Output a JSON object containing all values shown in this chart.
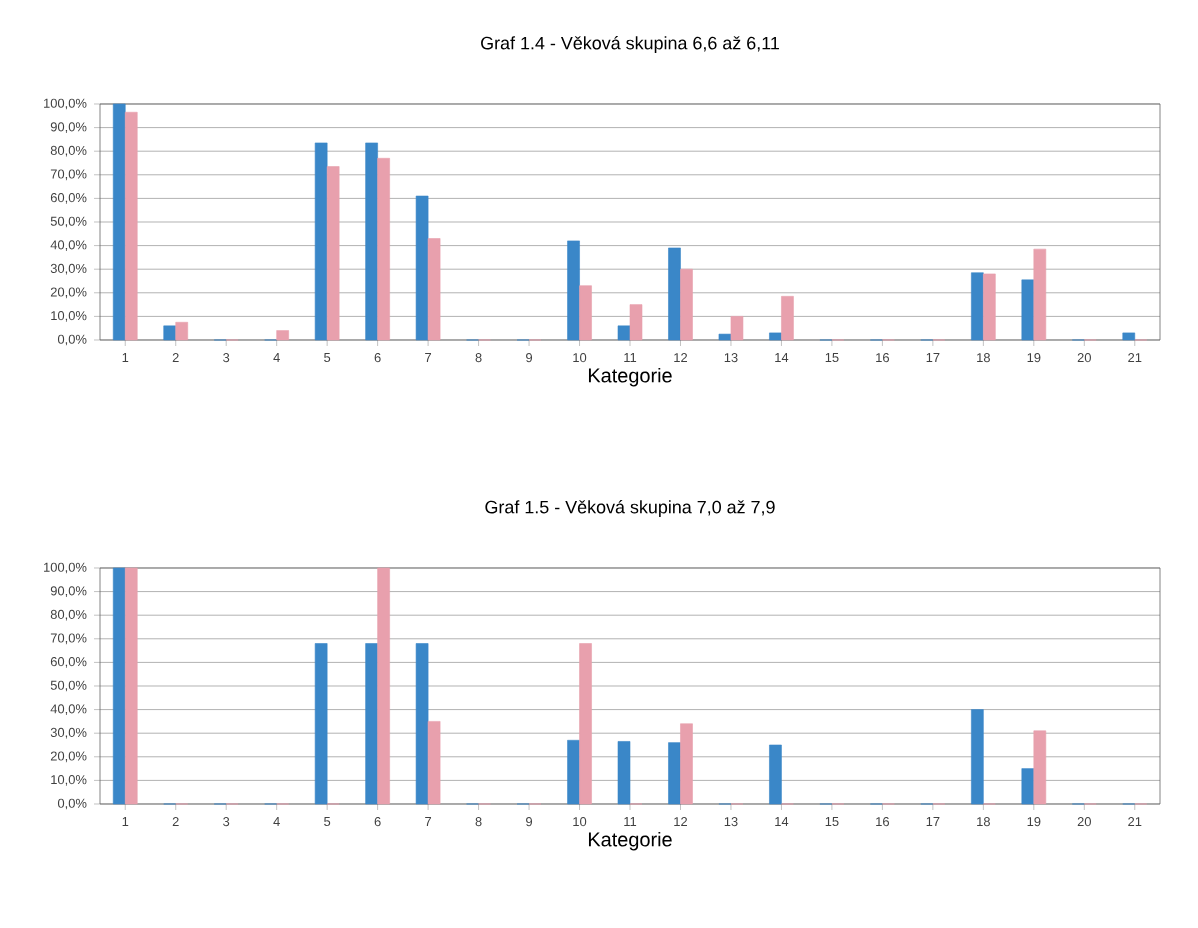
{
  "chart_data": [
    {
      "type": "bar",
      "title": "Graf 1.4 - Věková skupina 6,6 až 6,11",
      "xlabel": "Kategorie",
      "categories": [
        "1",
        "2",
        "3",
        "4",
        "5",
        "6",
        "7",
        "8",
        "9",
        "10",
        "11",
        "12",
        "13",
        "14",
        "15",
        "16",
        "17",
        "18",
        "19",
        "20",
        "21"
      ],
      "series": [
        {
          "color": "#3a87c8",
          "values": [
            100,
            6,
            0,
            0,
            83.5,
            83.5,
            61,
            0,
            0,
            42,
            6,
            39,
            2.5,
            3,
            0,
            0,
            0,
            28.5,
            25.5,
            0,
            3
          ]
        },
        {
          "color": "#e8a0ad",
          "values": [
            96.5,
            7.5,
            0,
            4,
            73.5,
            77,
            43,
            0,
            0,
            23,
            15,
            30,
            10,
            18.5,
            0,
            0,
            0,
            28,
            38.5,
            0,
            0
          ]
        }
      ],
      "ylim": [
        0,
        100
      ],
      "yticks": [
        {
          "value": 0,
          "label": "0,0%"
        },
        {
          "value": 10,
          "label": "10,0%"
        },
        {
          "value": 20,
          "label": "20,0%"
        },
        {
          "value": 30,
          "label": "30,0%"
        },
        {
          "value": 40,
          "label": "40,0%"
        },
        {
          "value": 50,
          "label": "50,0%"
        },
        {
          "value": 60,
          "label": "60,0%"
        },
        {
          "value": 70,
          "label": "70,0%"
        },
        {
          "value": 80,
          "label": "80,0%"
        },
        {
          "value": 90,
          "label": "90,0%"
        },
        {
          "value": 100,
          "label": "100,0%"
        }
      ],
      "grid": "y"
    },
    {
      "type": "bar",
      "title": "Graf 1.5 - Věková skupina 7,0 až 7,9",
      "xlabel": "Kategorie",
      "categories": [
        "1",
        "2",
        "3",
        "4",
        "5",
        "6",
        "7",
        "8",
        "9",
        "10",
        "11",
        "12",
        "13",
        "14",
        "15",
        "16",
        "17",
        "18",
        "19",
        "20",
        "21"
      ],
      "series": [
        {
          "color": "#3a87c8",
          "values": [
            100,
            0,
            0,
            0,
            68,
            68,
            68,
            0,
            0,
            27,
            26.5,
            26,
            0,
            25,
            0,
            0,
            0,
            40,
            15,
            0,
            0
          ]
        },
        {
          "color": "#e8a0ad",
          "values": [
            100,
            0,
            0,
            0,
            0,
            100,
            35,
            0,
            0,
            68,
            0,
            34,
            0,
            0,
            0,
            0,
            0,
            0,
            31,
            0,
            0
          ]
        }
      ],
      "ylim": [
        0,
        100
      ],
      "yticks": [
        {
          "value": 0,
          "label": "0,0%"
        },
        {
          "value": 10,
          "label": "10,0%"
        },
        {
          "value": 20,
          "label": "20,0%"
        },
        {
          "value": 30,
          "label": "30,0%"
        },
        {
          "value": 40,
          "label": "40,0%"
        },
        {
          "value": 50,
          "label": "50,0%"
        },
        {
          "value": 60,
          "label": "60,0%"
        },
        {
          "value": 70,
          "label": "70,0%"
        },
        {
          "value": 80,
          "label": "80,0%"
        },
        {
          "value": 90,
          "label": "90,0%"
        },
        {
          "value": 100,
          "label": "100,0%"
        }
      ],
      "grid": "y"
    }
  ]
}
